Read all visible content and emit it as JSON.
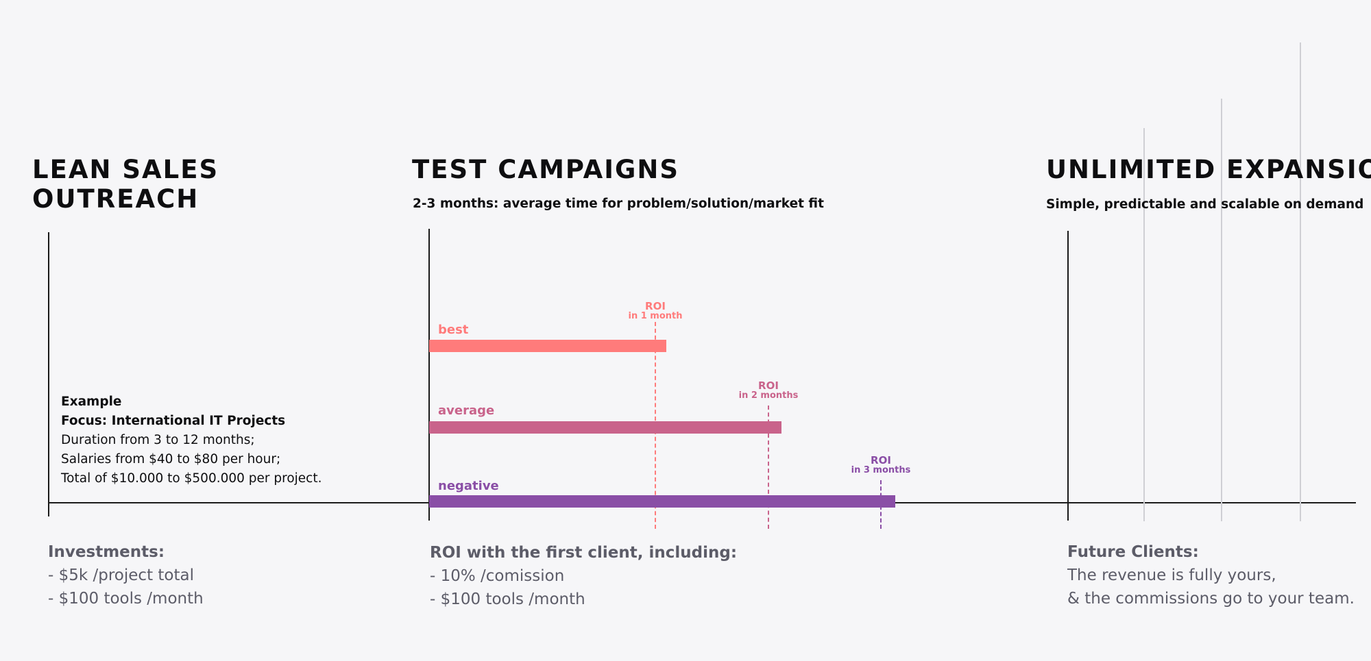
{
  "lean": {
    "title_line1": "LEAN SALES",
    "title_line2": "OUTREACH",
    "example_title": "Example",
    "example_focus": "Focus: International IT Projects",
    "example_lines": [
      "Duration from 3 to 12 months;",
      "Salaries from $40 to $80 per hour;",
      "Total of $10.000 to $500.000 per project."
    ],
    "bottom_title": "Investments:",
    "bottom_lines": [
      "- $5k /project total",
      "- $100 tools /month"
    ]
  },
  "test": {
    "title": "TEST CAMPAIGNS",
    "subtitle": "2-3 months: average time for problem/solution/market fit",
    "bottom_title": "ROI with the first client, including:",
    "bottom_lines": [
      "- 10% /comission",
      "- $100 tools /month"
    ],
    "scenarios": [
      {
        "label": "best",
        "color": "#ff7b7b",
        "roi_line1": "ROI",
        "roi_line2": "in 1 month"
      },
      {
        "label": "average",
        "color": "#c9638b",
        "roi_line1": "ROI",
        "roi_line2": "in 2 months"
      },
      {
        "label": "negative",
        "color": "#8a4ea6",
        "roi_line1": "ROI",
        "roi_line2": "in 3 months"
      }
    ]
  },
  "expansion": {
    "title": "UNLIMITED EXPANSION",
    "subtitle": "Simple, predictable and scalable on demand",
    "bottom_title": "Future Clients:",
    "bottom_lines": [
      "The revenue is fully yours,",
      "& the commissions go to your team."
    ]
  }
}
